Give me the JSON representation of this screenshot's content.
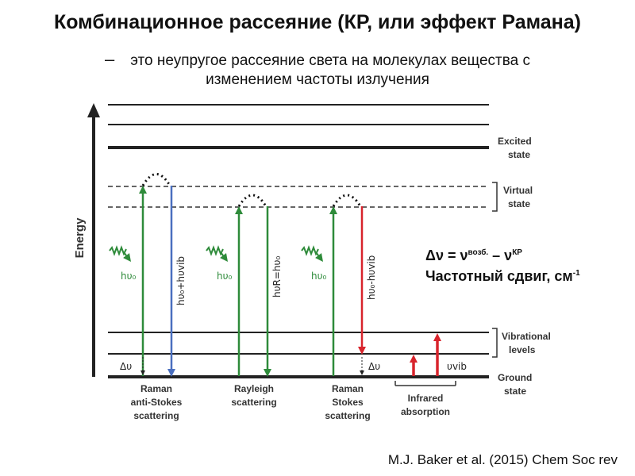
{
  "title": "Комбинационное рассеяние (КР, или эффект Рамана)",
  "subtitle_dash": "–",
  "subtitle_line1": "это неупругое рассеяние света на молекулах вещества с",
  "subtitle_line2": "изменением частоты излучения",
  "equation": {
    "lhs": "Δν = ν",
    "sup1": "возб.",
    "mid": " – ν",
    "sup2": "КР"
  },
  "shift": {
    "text": "Частотный сдвиг, см",
    "sup": "-1"
  },
  "reference": "M.J. Baker et al. (2015) Chem Soc rev",
  "diagram": {
    "energy_label": "Energy",
    "states": {
      "excited": [
        "Excited",
        "state"
      ],
      "virtual": [
        "Virtual",
        "state"
      ],
      "vibrational": [
        "Vibrational",
        "levels"
      ],
      "ground": [
        "Ground",
        "state"
      ]
    },
    "processes": {
      "anti_stokes": [
        "Raman",
        "anti-Stokes",
        "scattering"
      ],
      "rayleigh": [
        "Rayleigh",
        "scattering"
      ],
      "stokes": [
        "Raman",
        "Stokes",
        "scattering"
      ],
      "infrared": [
        "Infrared",
        "absorption"
      ]
    },
    "symbols": {
      "incident": "hυ₀",
      "anti_stokes_out": "hυ₀+hυvib",
      "rayleigh_out": "hυR=hυ₀",
      "stokes_out": "hυ₀-hυvib",
      "delta": "Δυ",
      "vib": "υvib"
    },
    "colors": {
      "green": "#2e8b3a",
      "blue": "#4a6fbf",
      "red": "#d8242c"
    }
  }
}
